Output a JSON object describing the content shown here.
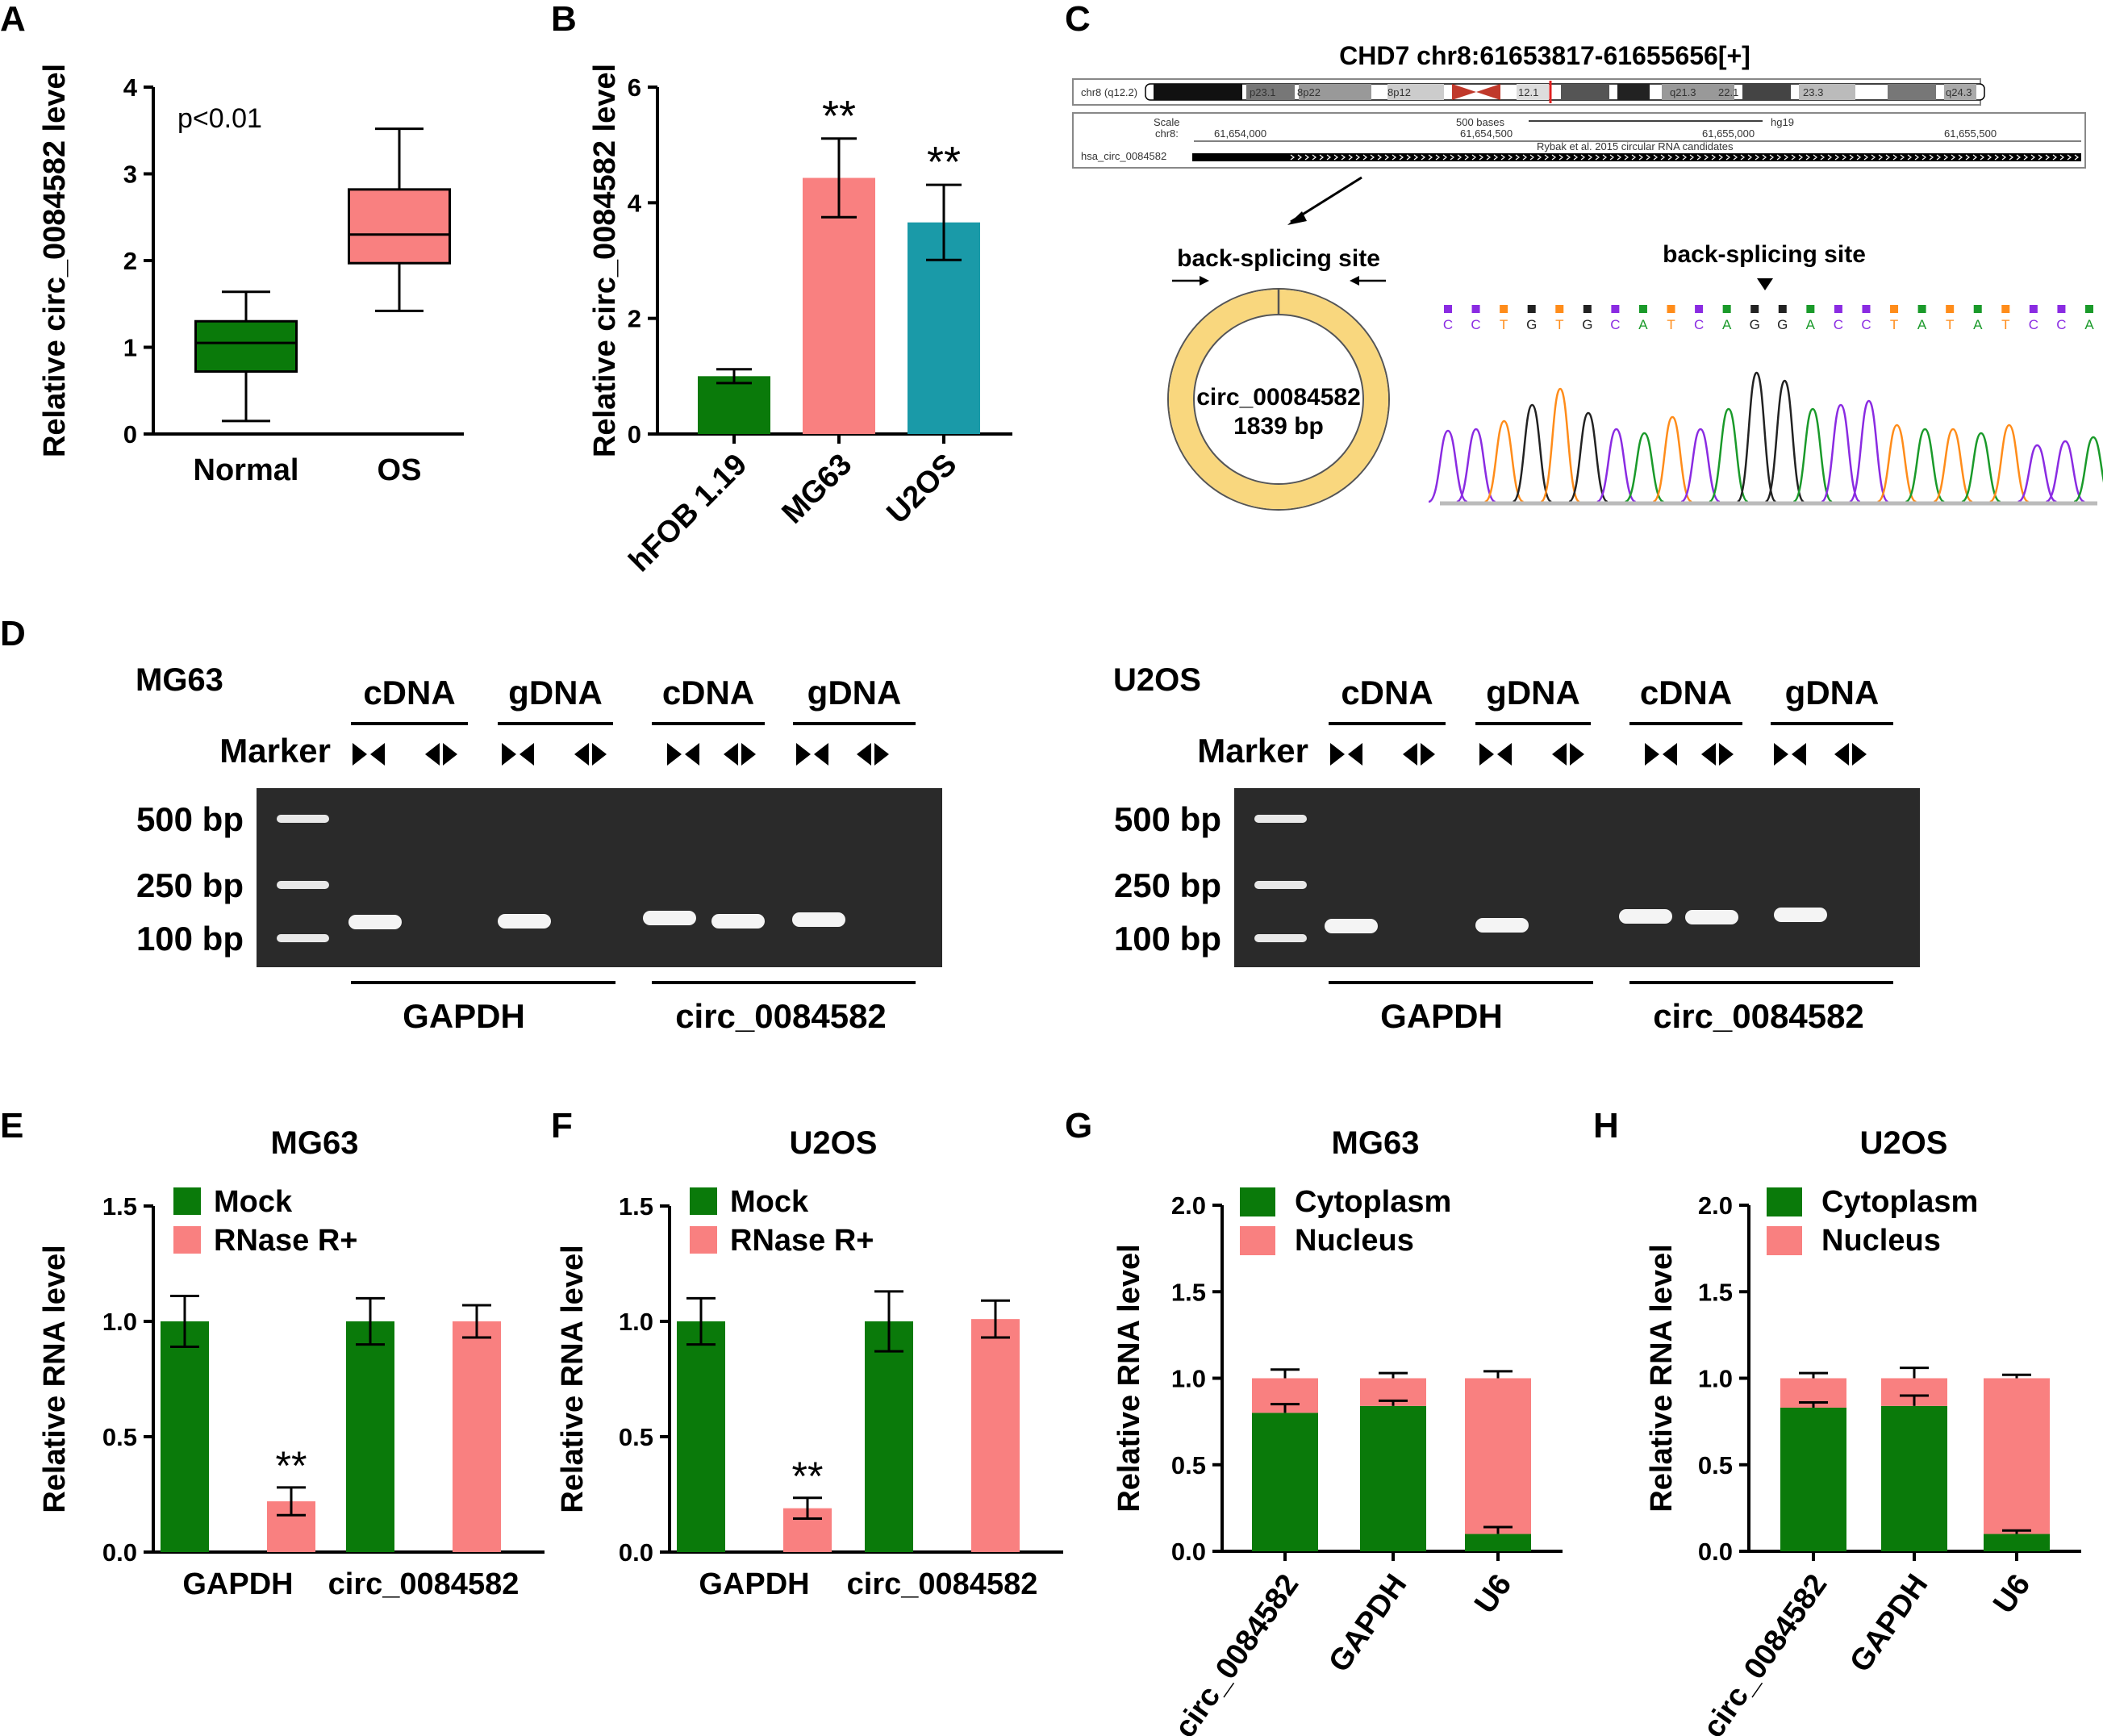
{
  "panel_labels": {
    "a": "A",
    "b": "B",
    "c": "C",
    "d": "D",
    "e": "E",
    "f": "F",
    "g": "G",
    "h": "H"
  },
  "colors": {
    "green": "#0a7a0a",
    "pink": "#f98080",
    "teal": "#1a9aa8",
    "ring": "#f9d77e"
  },
  "chart_data": [
    {
      "id": "A",
      "type": "box",
      "ylabel": "Relative circ_0084582 level",
      "yticks": [
        "0",
        "1",
        "2",
        "3",
        "4"
      ],
      "ylim": [
        0,
        4
      ],
      "categories": [
        "Normal",
        "OS"
      ],
      "boxes": [
        {
          "name": "Normal",
          "min": 0.15,
          "q1": 0.72,
          "median": 1.05,
          "q3": 1.3,
          "max": 1.64,
          "color": "#0a7a0a"
        },
        {
          "name": "OS",
          "min": 1.42,
          "q1": 1.97,
          "median": 2.3,
          "q3": 2.82,
          "max": 3.52,
          "color": "#f98080"
        }
      ],
      "annotation": "p<0.01"
    },
    {
      "id": "B",
      "type": "bar",
      "ylabel": "Relative circ_0084582 level",
      "yticks": [
        "0",
        "2",
        "4",
        "6"
      ],
      "ylim": [
        0,
        6
      ],
      "categories": [
        "hFOB 1.19",
        "MG63",
        "U2OS"
      ],
      "values": [
        1.0,
        4.43,
        3.66
      ],
      "errors": [
        0.12,
        0.68,
        0.65
      ],
      "bar_colors": [
        "#0a7a0a",
        "#f98080",
        "#1a9aa8"
      ],
      "significance": [
        "",
        "**",
        "**"
      ]
    },
    {
      "id": "E",
      "type": "grouped_bar",
      "title": "MG63",
      "ylabel": "Relative RNA level",
      "yticks": [
        "0.0",
        "0.5",
        "1.0",
        "1.5"
      ],
      "ylim": [
        0,
        1.5
      ],
      "categories": [
        "GAPDH",
        "circ_0084582"
      ],
      "series": [
        {
          "name": "Mock",
          "values": [
            1.0,
            1.0
          ],
          "errors": [
            0.11,
            0.1
          ],
          "color": "#0a7a0a"
        },
        {
          "name": "RNase R+",
          "values": [
            0.22,
            1.0
          ],
          "errors": [
            0.06,
            0.07
          ],
          "color": "#f98080"
        }
      ],
      "significance": [
        "**",
        ""
      ]
    },
    {
      "id": "F",
      "type": "grouped_bar",
      "title": "U2OS",
      "ylabel": "Relative RNA level",
      "yticks": [
        "0.0",
        "0.5",
        "1.0",
        "1.5"
      ],
      "ylim": [
        0,
        1.5
      ],
      "categories": [
        "GAPDH",
        "circ_0084582"
      ],
      "series": [
        {
          "name": "Mock",
          "values": [
            1.0,
            1.0
          ],
          "errors": [
            0.1,
            0.13
          ],
          "color": "#0a7a0a"
        },
        {
          "name": "RNase R+",
          "values": [
            0.19,
            1.01
          ],
          "errors": [
            0.045,
            0.08
          ],
          "color": "#f98080"
        }
      ],
      "significance": [
        "**",
        ""
      ]
    },
    {
      "id": "G",
      "type": "stacked_bar",
      "title": "MG63",
      "ylabel": "Relative RNA level",
      "yticks": [
        "0.0",
        "0.5",
        "1.0",
        "1.5",
        "2.0"
      ],
      "ylim": [
        0,
        2.0
      ],
      "categories": [
        "circ_0084582",
        "GAPDH",
        "U6"
      ],
      "series": [
        {
          "name": "Cytoplasm",
          "values": [
            0.8,
            0.84,
            0.1
          ],
          "errors": [
            0.05,
            0.03,
            0.04
          ],
          "color": "#0a7a0a"
        },
        {
          "name": "Nucleus",
          "values": [
            0.2,
            0.16,
            0.9
          ],
          "errors": [
            0.05,
            0.03,
            0.04
          ],
          "color": "#f98080"
        }
      ]
    },
    {
      "id": "H",
      "type": "stacked_bar",
      "title": "U2OS",
      "ylabel": "Relative RNA level",
      "yticks": [
        "0.0",
        "0.5",
        "1.0",
        "1.5",
        "2.0"
      ],
      "ylim": [
        0,
        2.0
      ],
      "categories": [
        "circ_0084582",
        "GAPDH",
        "U6"
      ],
      "series": [
        {
          "name": "Cytoplasm",
          "values": [
            0.83,
            0.84,
            0.1
          ],
          "errors": [
            0.03,
            0.06,
            0.02
          ],
          "color": "#0a7a0a"
        },
        {
          "name": "Nucleus",
          "values": [
            0.17,
            0.16,
            0.9
          ],
          "errors": [
            0.03,
            0.06,
            0.02
          ],
          "color": "#f98080"
        }
      ]
    }
  ],
  "panel_c": {
    "title": "CHD7 chr8:61653817-61655656[+]",
    "browser": {
      "chrom": "chr8 (q12.2)",
      "bands": [
        "p23.1",
        "8p22",
        "8p12",
        "12.1",
        "q21.3",
        "22.1",
        "23.3",
        "q24.3"
      ],
      "scale_label": "Scale",
      "chr_label": "chr8:",
      "scale_text": "500 bases",
      "assembly": "hg19",
      "positions": [
        "61,654,000",
        "61,654,500",
        "61,655,000",
        "61,655,500"
      ],
      "track_note": "Rybak et al. 2015 circular RNA candidates",
      "track_name": "hsa_circ_0084582"
    },
    "back_splice_left": "back-splicing site",
    "back_splice_right": "back-splicing site",
    "circ_name": "circ_00084582",
    "circ_size": "1839 bp",
    "sequence": [
      "C",
      "C",
      "T",
      "G",
      "T",
      "G",
      "C",
      "A",
      "T",
      "C",
      "A",
      "G",
      "G",
      "A",
      "C",
      "C",
      "T",
      "A",
      "T",
      "A",
      "T",
      "C",
      "C",
      "A"
    ]
  },
  "panel_d": {
    "gels": [
      {
        "cell": "MG63",
        "headers": [
          "cDNA",
          "gDNA",
          "cDNA",
          "gDNA"
        ],
        "marker": "Marker",
        "sizes": [
          "500 bp",
          "250 bp",
          "100 bp"
        ],
        "genes": [
          "GAPDH",
          "circ_0084582"
        ]
      },
      {
        "cell": "U2OS",
        "headers": [
          "cDNA",
          "gDNA",
          "cDNA",
          "gDNA"
        ],
        "marker": "Marker",
        "sizes": [
          "500 bp",
          "250 bp",
          "100 bp"
        ],
        "genes": [
          "GAPDH",
          "circ_0084582"
        ]
      }
    ]
  }
}
